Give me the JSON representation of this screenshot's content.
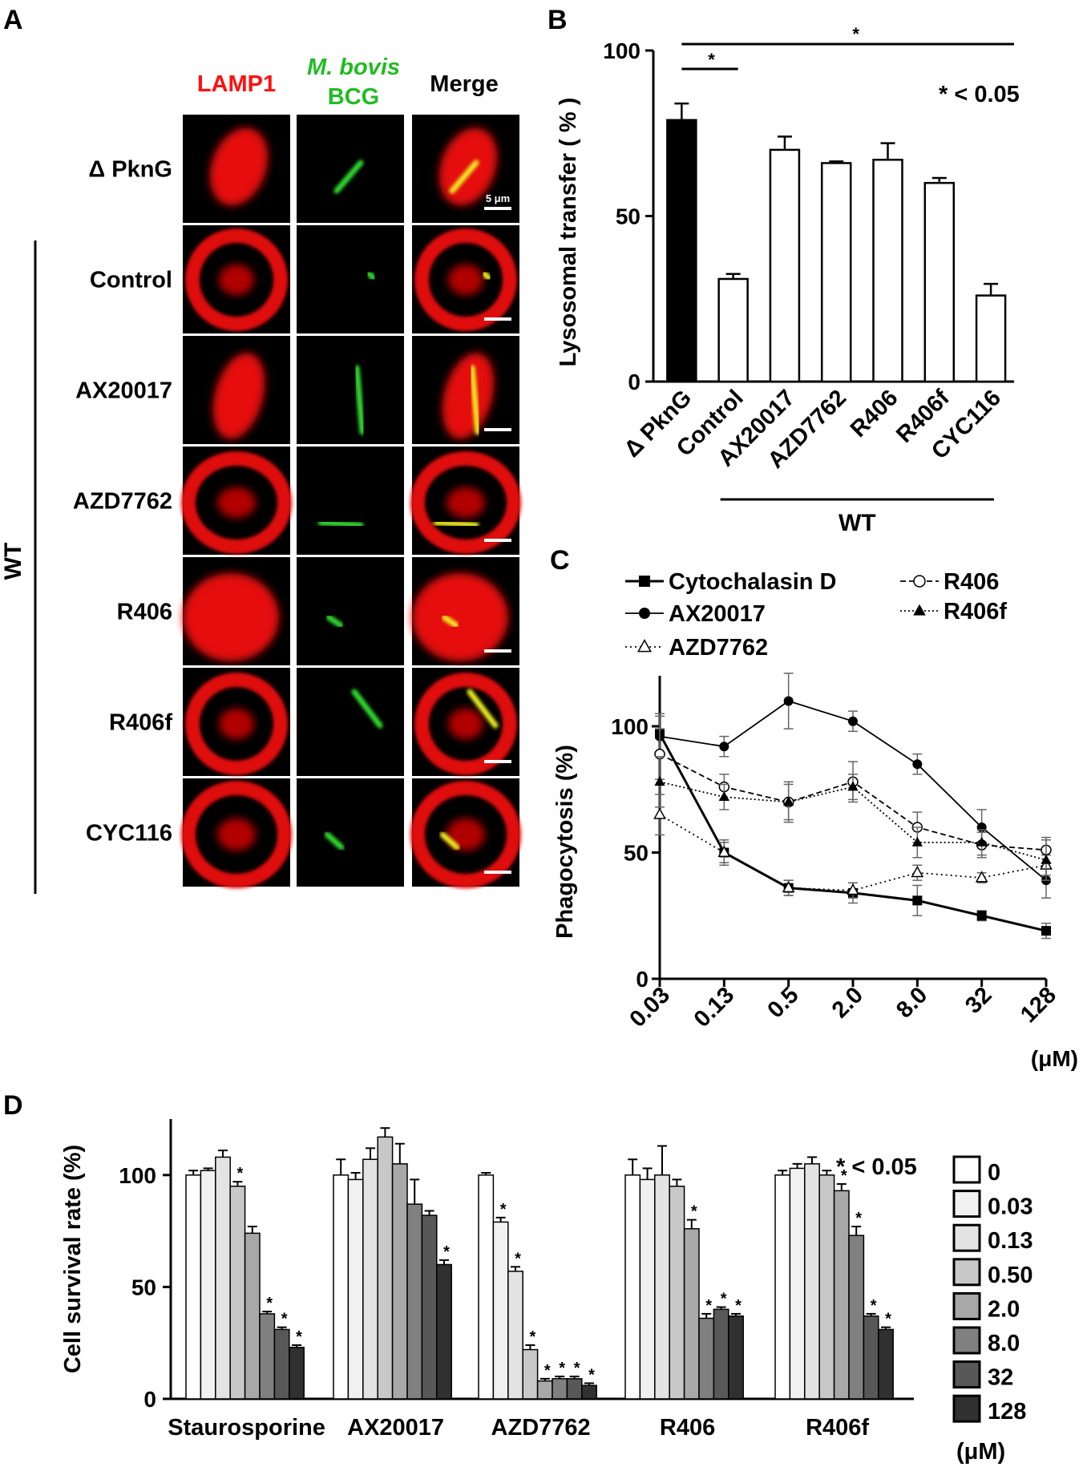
{
  "panels": {
    "A": {
      "letter": "A",
      "column_headers": [
        "LAMP1",
        "M. bovis",
        "BCG",
        "Merge"
      ],
      "header_colors": [
        "#ff1010",
        "#22bb22",
        "#22bb22",
        "#000000"
      ],
      "row_labels": [
        "Δ PknG",
        "Control",
        "AX20017",
        "AZD7762",
        "R406",
        "R406f",
        "CYC116"
      ],
      "group_label": "WT",
      "scale_bar_label": "5 μm"
    },
    "B": {
      "letter": "B"
    },
    "C": {
      "letter": "C"
    },
    "D": {
      "letter": "D"
    }
  },
  "chart_data": [
    {
      "panel": "B",
      "type": "bar",
      "categories": [
        "Δ PknG",
        "Control",
        "AX20017",
        "AZD7762",
        "R406",
        "R406f",
        "CYC116"
      ],
      "values": [
        79,
        31,
        70,
        66,
        67,
        60,
        26
      ],
      "errors": [
        5,
        1.5,
        4,
        0.5,
        5,
        1.5,
        3.5
      ],
      "bar_fills": [
        "#000000",
        "#ffffff",
        "#ffffff",
        "#ffffff",
        "#ffffff",
        "#ffffff",
        "#ffffff"
      ],
      "ylabel": "Lysosomal transfer ( % )",
      "ylim": [
        0,
        100
      ],
      "yticks": [
        0,
        50,
        100
      ],
      "group_label": "WT",
      "significance_marks": [
        "*",
        "*"
      ],
      "significance_note": "* < 0.05"
    },
    {
      "panel": "C",
      "type": "line",
      "x": [
        "0.03",
        "0.13",
        "0.5",
        "2.0",
        "8.0",
        "32",
        "128"
      ],
      "xunit": "(μM)",
      "ylabel": "Phagocytosis (%)",
      "ylim": [
        0,
        120
      ],
      "yticks": [
        0,
        50,
        100
      ],
      "legend": [
        [
          "Cytochalasin D",
          "AX20017",
          "AZD7762"
        ],
        [
          "R406",
          "R406f"
        ]
      ],
      "series": [
        {
          "name": "Cytochalasin D",
          "marker": "square",
          "dash": "",
          "values": [
            97,
            50,
            36,
            34,
            31,
            25,
            19
          ],
          "errors": [
            8,
            5,
            3,
            4,
            6,
            2,
            3
          ]
        },
        {
          "name": "AX20017",
          "marker": "circle",
          "dash": "",
          "values": [
            96,
            92,
            110,
            102,
            85,
            60,
            39
          ],
          "errors": [
            8,
            4,
            11,
            4,
            4,
            7,
            7
          ]
        },
        {
          "name": "AZD7762",
          "marker": "triangle-open",
          "dash": "2 4",
          "values": [
            65,
            50,
            36,
            35,
            42,
            40,
            45
          ],
          "errors": [
            8,
            4,
            3,
            3,
            3,
            2,
            4
          ]
        },
        {
          "name": "R406",
          "marker": "circle-open",
          "dash": "7 4",
          "values": [
            89,
            76,
            70,
            78,
            60,
            53,
            51
          ],
          "errors": [
            10,
            5,
            8,
            8,
            6,
            5,
            5
          ]
        },
        {
          "name": "R406f",
          "marker": "triangle",
          "dash": "2 3",
          "values": [
            78,
            72,
            70,
            76,
            54,
            54,
            47
          ],
          "errors": [
            10,
            5,
            7,
            5,
            6,
            5,
            8
          ]
        }
      ]
    },
    {
      "panel": "D",
      "type": "bar",
      "categories": [
        "Staurosporine",
        "AX20017",
        "AZD7762",
        "R406",
        "R406f"
      ],
      "ylabel": "Cell survival rate (%)",
      "ylim": [
        0,
        125
      ],
      "yticks": [
        0,
        50,
        100
      ],
      "legend_title": "(μM)",
      "significance_note": "* < 0.05",
      "series": [
        {
          "name": "0",
          "color": "#ffffff",
          "values": [
            100,
            100,
            100,
            100,
            100
          ],
          "errors": [
            2,
            7,
            1,
            7,
            2
          ]
        },
        {
          "name": "0.03",
          "color": "#f1f1f1",
          "values": [
            102,
            98,
            79,
            98,
            103
          ],
          "errors": [
            1,
            3,
            2,
            5,
            2
          ]
        },
        {
          "name": "0.13",
          "color": "#e3e3e3",
          "values": [
            108,
            107,
            57,
            100,
            105
          ],
          "errors": [
            3,
            5,
            2,
            13,
            3
          ]
        },
        {
          "name": "0.50",
          "color": "#c8c8c8",
          "values": [
            95,
            117,
            22,
            95,
            100
          ],
          "errors": [
            2,
            4,
            2,
            3,
            2
          ]
        },
        {
          "name": "2.0",
          "color": "#a8a8a8",
          "values": [
            74,
            105,
            8,
            76,
            93
          ],
          "errors": [
            3,
            9,
            1,
            4,
            3
          ]
        },
        {
          "name": "8.0",
          "color": "#808080",
          "values": [
            38,
            87,
            9,
            36,
            73
          ],
          "errors": [
            1,
            11,
            1,
            2,
            4
          ]
        },
        {
          "name": "32",
          "color": "#585858",
          "values": [
            31,
            82,
            9,
            40,
            37
          ],
          "errors": [
            1,
            2,
            1,
            1,
            1
          ]
        },
        {
          "name": "128",
          "color": "#303030",
          "values": [
            23,
            60,
            6,
            37,
            31
          ],
          "errors": [
            1,
            2,
            1,
            1,
            1
          ]
        }
      ],
      "significant": [
        [
          false,
          false,
          false,
          true,
          false,
          true,
          true,
          true
        ],
        [
          false,
          false,
          false,
          false,
          false,
          false,
          false,
          true
        ],
        [
          false,
          true,
          true,
          true,
          true,
          true,
          true,
          true
        ],
        [
          false,
          false,
          false,
          false,
          true,
          true,
          true,
          true
        ],
        [
          false,
          false,
          false,
          false,
          true,
          true,
          true,
          true
        ]
      ]
    }
  ]
}
